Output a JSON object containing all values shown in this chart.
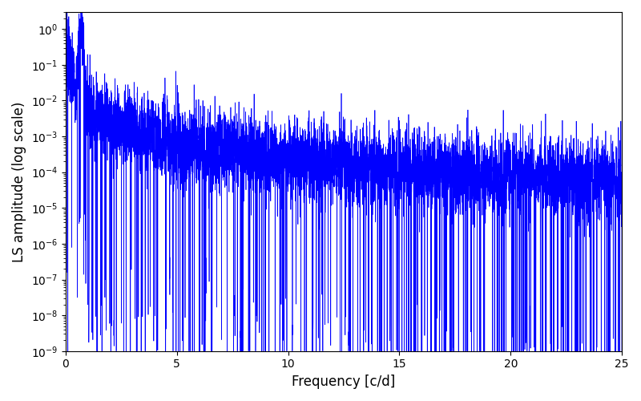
{
  "xlabel": "Frequency [c/d]",
  "ylabel": "LS amplitude (log scale)",
  "xlim": [
    0,
    25
  ],
  "ylim": [
    1e-09,
    3
  ],
  "yscale": "log",
  "line_color": "#0000ff",
  "linewidth": 0.5,
  "figsize": [
    8.0,
    5.0
  ],
  "dpi": 100,
  "freq_max": 25.0,
  "n_points": 8000,
  "seed": 7,
  "background_color": "#ffffff"
}
